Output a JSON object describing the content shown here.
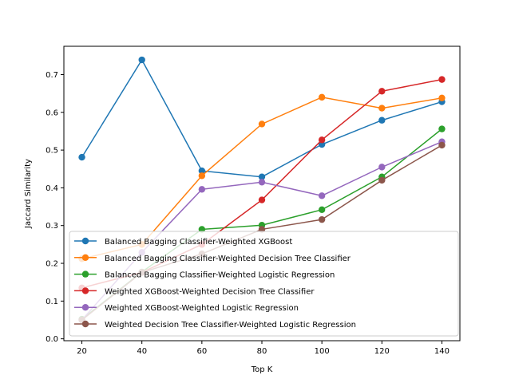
{
  "chart_data": {
    "type": "line",
    "title": "",
    "xlabel": "Top K",
    "ylabel": "Jaccard Similarity",
    "x": [
      20,
      40,
      60,
      80,
      100,
      120,
      140
    ],
    "xticks": [
      20,
      40,
      60,
      80,
      100,
      120,
      140
    ],
    "yticks": [
      0.0,
      0.1,
      0.2,
      0.3,
      0.4,
      0.5,
      0.6,
      0.7
    ],
    "ytick_labels": [
      "0.0",
      "0.1",
      "0.2",
      "0.3",
      "0.4",
      "0.5",
      "0.6",
      "0.7"
    ],
    "xlim": [
      14,
      146
    ],
    "ylim": [
      -0.005,
      0.775
    ],
    "grid": false,
    "legend_position": "lower-left",
    "series": [
      {
        "name": "Balanced Bagging Classifier-Weighted XGBoost",
        "color": "#1f77b4",
        "values": [
          0.481,
          0.739,
          0.445,
          0.429,
          0.515,
          0.579,
          0.628
        ]
      },
      {
        "name": "Balanced Bagging Classifier-Weighted Decision Tree Classifier",
        "color": "#ff7f0e",
        "values": [
          0.212,
          0.25,
          0.432,
          0.569,
          0.64,
          0.611,
          0.638
        ]
      },
      {
        "name": "Balanced Bagging Classifier-Weighted Logistic Regression",
        "color": "#2ca02c",
        "values": [
          0.052,
          0.177,
          0.29,
          0.301,
          0.342,
          0.429,
          0.556
        ]
      },
      {
        "name": "Weighted XGBoost-Weighted Decision Tree Classifier",
        "color": "#d62728",
        "values": [
          0.135,
          0.176,
          0.25,
          0.368,
          0.527,
          0.656,
          0.687
        ]
      },
      {
        "name": "Weighted XGBoost-Weighted Logistic Regression",
        "color": "#9467bd",
        "values": [
          0.05,
          0.229,
          0.396,
          0.415,
          0.379,
          0.455,
          0.522
        ]
      },
      {
        "name": "Weighted Decision Tree Classifier-Weighted Logistic Regression",
        "color": "#8c564b",
        "values": [
          0.05,
          0.176,
          0.225,
          0.29,
          0.316,
          0.42,
          0.513
        ]
      }
    ]
  }
}
